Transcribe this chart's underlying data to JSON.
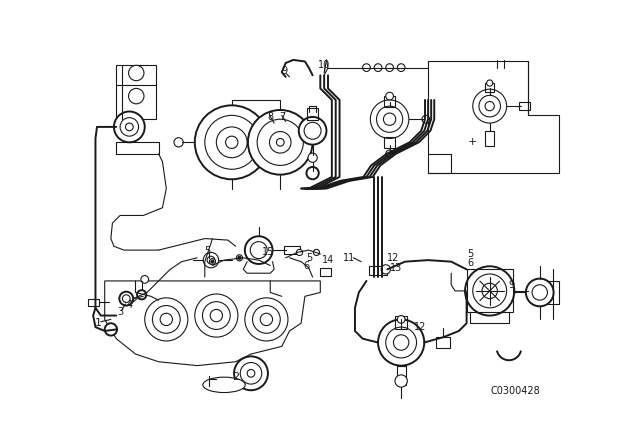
{
  "bg_color": "#ffffff",
  "line_color": "#1a1a1a",
  "catalog_number": "C0300428",
  "fig_width": 6.4,
  "fig_height": 4.48,
  "dpi": 100,
  "border_color": "#cccccc"
}
